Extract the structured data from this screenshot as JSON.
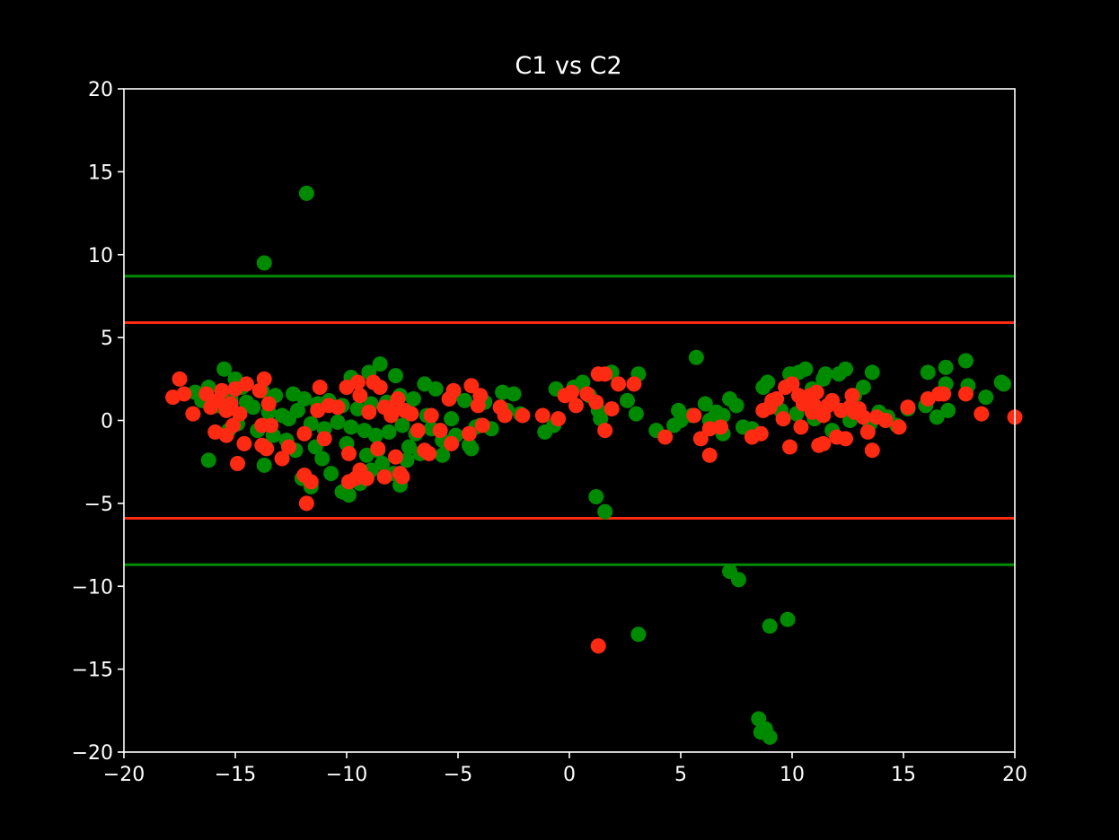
{
  "chart_data": {
    "type": "scatter",
    "title": "C1 vs C2",
    "xlabel": "",
    "ylabel": "",
    "xlim": [
      -20,
      20
    ],
    "ylim": [
      -20,
      20
    ],
    "xticks": [
      -20,
      -15,
      -10,
      -5,
      0,
      5,
      10,
      15,
      20
    ],
    "yticks": [
      -20,
      -15,
      -10,
      -5,
      0,
      5,
      10,
      15,
      20
    ],
    "grid": false,
    "colors": {
      "background": "#000000",
      "axes": "#ffffff",
      "green": "#008a00",
      "red": "#ff2a12"
    },
    "hlines": [
      {
        "y": 8.7,
        "color": "#008a00"
      },
      {
        "y": 5.9,
        "color": "#ff2a12"
      },
      {
        "y": -5.9,
        "color": "#ff2a12"
      },
      {
        "y": -8.7,
        "color": "#008a00"
      }
    ],
    "series": [
      {
        "color": "#008a00",
        "points": [
          [
            -11.8,
            13.7
          ],
          [
            -13.7,
            9.5
          ],
          [
            5.7,
            3.8
          ],
          [
            17.8,
            3.6
          ],
          [
            -15.5,
            3.1
          ],
          [
            -8.5,
            3.4
          ],
          [
            -7.8,
            2.7
          ],
          [
            -9.0,
            2.9
          ],
          [
            -9.8,
            2.6
          ],
          [
            -15.0,
            2.5
          ],
          [
            -16.2,
            2.0
          ],
          [
            -14.7,
            2.0
          ],
          [
            -13.8,
            1.8
          ],
          [
            -16.8,
            1.7
          ],
          [
            -13.2,
            1.5
          ],
          [
            -12.4,
            1.6
          ],
          [
            -11.9,
            1.3
          ],
          [
            -11.3,
            1.0
          ],
          [
            -10.8,
            1.2
          ],
          [
            -10.2,
            0.9
          ],
          [
            -9.5,
            0.7
          ],
          [
            -8.9,
            1.0
          ],
          [
            -8.2,
            1.1
          ],
          [
            -7.6,
            1.5
          ],
          [
            -7.0,
            1.3
          ],
          [
            -6.5,
            2.2
          ],
          [
            -6.0,
            1.9
          ],
          [
            -5.2,
            1.6
          ],
          [
            -4.7,
            1.2
          ],
          [
            -3.8,
            1.1
          ],
          [
            -3.0,
            1.7
          ],
          [
            -2.5,
            1.6
          ],
          [
            -14.2,
            0.8
          ],
          [
            -13.5,
            0.5
          ],
          [
            -12.9,
            0.3
          ],
          [
            -12.2,
            0.6
          ],
          [
            -11.6,
            -0.2
          ],
          [
            -11.0,
            -0.5
          ],
          [
            -10.4,
            -0.1
          ],
          [
            -9.8,
            -0.4
          ],
          [
            -9.2,
            -0.6
          ],
          [
            -8.7,
            -0.9
          ],
          [
            -8.1,
            -0.7
          ],
          [
            -7.5,
            -0.3
          ],
          [
            -6.9,
            -0.8
          ],
          [
            -6.2,
            -0.5
          ],
          [
            -5.7,
            -1.2
          ],
          [
            -5.1,
            -0.9
          ],
          [
            -4.5,
            -1.5
          ],
          [
            -4.0,
            -0.3
          ],
          [
            -13.7,
            -2.7
          ],
          [
            -12.3,
            -1.8
          ],
          [
            -12.0,
            -3.5
          ],
          [
            -11.6,
            -4.0
          ],
          [
            -11.1,
            -2.3
          ],
          [
            -10.7,
            -3.2
          ],
          [
            -10.2,
            -4.3
          ],
          [
            -9.9,
            -4.5
          ],
          [
            -9.4,
            -3.8
          ],
          [
            -8.9,
            -3.0
          ],
          [
            -8.4,
            -2.6
          ],
          [
            -7.9,
            -3.2
          ],
          [
            -7.6,
            -3.9
          ],
          [
            -7.2,
            -1.6
          ],
          [
            -6.7,
            -2.0
          ],
          [
            -5.7,
            -2.1
          ],
          [
            -4.4,
            -1.7
          ],
          [
            -16.2,
            -2.4
          ],
          [
            -15.8,
            0.9
          ],
          [
            -15.2,
            1.3
          ],
          [
            -14.5,
            1.1
          ],
          [
            -14.9,
            -0.2
          ],
          [
            -12.7,
            -1.2
          ],
          [
            -11.4,
            -1.6
          ],
          [
            -10.0,
            -1.4
          ],
          [
            -8.6,
            -1.8
          ],
          [
            -7.3,
            -2.4
          ],
          [
            -9.1,
            -2.1
          ],
          [
            -6.4,
            0.3
          ],
          [
            -5.3,
            0.1
          ],
          [
            -4.2,
            -0.4
          ],
          [
            -3.5,
            -0.5
          ],
          [
            -2.8,
            0.6
          ],
          [
            -2.2,
            0.4
          ],
          [
            -0.6,
            1.9
          ],
          [
            0.2,
            2.0
          ],
          [
            0.6,
            2.3
          ],
          [
            0.9,
            1.5
          ],
          [
            1.3,
            0.6
          ],
          [
            1.4,
            0.1
          ],
          [
            1.9,
            2.9
          ],
          [
            2.6,
            1.2
          ],
          [
            3.0,
            0.4
          ],
          [
            3.1,
            2.8
          ],
          [
            -1.1,
            -0.7
          ],
          [
            -0.7,
            -0.3
          ],
          [
            1.2,
            -4.6
          ],
          [
            1.6,
            -5.5
          ],
          [
            3.1,
            -12.9
          ],
          [
            3.9,
            -0.6
          ],
          [
            4.7,
            -0.3
          ],
          [
            4.9,
            0.6
          ],
          [
            5.5,
            0.3
          ],
          [
            6.1,
            1.0
          ],
          [
            6.6,
            0.5
          ],
          [
            6.9,
            -0.8
          ],
          [
            7.2,
            1.3
          ],
          [
            7.5,
            0.9
          ],
          [
            7.8,
            -0.4
          ],
          [
            8.2,
            -0.5
          ],
          [
            8.7,
            2.0
          ],
          [
            8.9,
            2.3
          ],
          [
            9.2,
            1.2
          ],
          [
            9.5,
            0.6
          ],
          [
            9.9,
            2.8
          ],
          [
            10.3,
            2.9
          ],
          [
            10.6,
            3.1
          ],
          [
            10.9,
            1.9
          ],
          [
            11.4,
            2.5
          ],
          [
            11.5,
            2.8
          ],
          [
            12.1,
            2.8
          ],
          [
            12.4,
            3.1
          ],
          [
            12.8,
            1.5
          ],
          [
            13.2,
            2.0
          ],
          [
            13.6,
            2.9
          ],
          [
            13.9,
            0.5
          ],
          [
            14.3,
            0.2
          ],
          [
            14.7,
            -0.3
          ],
          [
            15.2,
            0.7
          ],
          [
            16.0,
            0.9
          ],
          [
            16.1,
            2.9
          ],
          [
            16.5,
            0.2
          ],
          [
            16.9,
            2.2
          ],
          [
            16.9,
            3.2
          ],
          [
            17.0,
            0.6
          ],
          [
            17.9,
            2.1
          ],
          [
            18.7,
            1.4
          ],
          [
            19.4,
            2.3
          ],
          [
            19.5,
            2.2
          ],
          [
            7.2,
            -9.1
          ],
          [
            7.6,
            -9.6
          ],
          [
            8.5,
            -18.0
          ],
          [
            8.6,
            -18.8
          ],
          [
            8.8,
            -18.6
          ],
          [
            9.0,
            -19.1
          ],
          [
            9.0,
            -12.4
          ],
          [
            9.8,
            -12.0
          ],
          [
            10.2,
            0.4
          ],
          [
            11.0,
            0.1
          ],
          [
            11.8,
            -0.6
          ],
          [
            12.6,
            0.0
          ],
          [
            13.5,
            -0.2
          ],
          [
            6.3,
            0.0
          ],
          [
            6.9,
            0.3
          ],
          [
            5.0,
            0.0
          ],
          [
            -14.0,
            -0.6
          ],
          [
            -13.3,
            -0.9
          ],
          [
            -12.6,
            0.1
          ],
          [
            -15.3,
            -0.6
          ],
          [
            -16.5,
            1.2
          ]
        ]
      },
      {
        "color": "#ff2a12",
        "points": [
          [
            -17.5,
            2.5
          ],
          [
            -17.8,
            1.4
          ],
          [
            -17.3,
            1.6
          ],
          [
            -16.9,
            0.4
          ],
          [
            -16.3,
            1.6
          ],
          [
            -16.1,
            0.8
          ],
          [
            -15.8,
            1.2
          ],
          [
            -15.6,
            1.8
          ],
          [
            -15.4,
            0.6
          ],
          [
            -15.2,
            1.0
          ],
          [
            -15.0,
            1.9
          ],
          [
            -14.8,
            0.4
          ],
          [
            -14.5,
            2.2
          ],
          [
            -13.9,
            1.8
          ],
          [
            -13.7,
            2.5
          ],
          [
            -13.5,
            1.0
          ],
          [
            -15.9,
            -0.7
          ],
          [
            -15.4,
            -0.9
          ],
          [
            -15.1,
            -0.3
          ],
          [
            -14.9,
            -2.6
          ],
          [
            -14.6,
            -1.4
          ],
          [
            -13.8,
            -0.3
          ],
          [
            -13.4,
            -0.3
          ],
          [
            -13.6,
            -1.7
          ],
          [
            -13.8,
            -1.5
          ],
          [
            -12.9,
            -2.3
          ],
          [
            -12.6,
            -1.6
          ],
          [
            -11.9,
            -0.8
          ],
          [
            -11.9,
            -3.3
          ],
          [
            -11.8,
            -5.0
          ],
          [
            -11.6,
            -3.7
          ],
          [
            -11.0,
            -1.1
          ],
          [
            -11.2,
            2.0
          ],
          [
            -11.3,
            0.6
          ],
          [
            -10.8,
            0.9
          ],
          [
            -10.4,
            0.8
          ],
          [
            -10.0,
            2.0
          ],
          [
            -9.9,
            -2.0
          ],
          [
            -9.9,
            -3.7
          ],
          [
            -9.6,
            -3.5
          ],
          [
            -9.4,
            -3.0
          ],
          [
            -9.1,
            -3.5
          ],
          [
            -9.0,
            0.5
          ],
          [
            -9.5,
            2.3
          ],
          [
            -9.4,
            1.5
          ],
          [
            -8.8,
            2.3
          ],
          [
            -8.5,
            2.0
          ],
          [
            -8.3,
            0.8
          ],
          [
            -8.3,
            -3.4
          ],
          [
            -8.6,
            -1.7
          ],
          [
            -8.0,
            0.3
          ],
          [
            -7.9,
            0.8
          ],
          [
            -7.7,
            1.3
          ],
          [
            -7.4,
            0.6
          ],
          [
            -7.8,
            -2.2
          ],
          [
            -7.6,
            -3.2
          ],
          [
            -7.5,
            -3.4
          ],
          [
            -7.1,
            0.4
          ],
          [
            -6.8,
            -0.6
          ],
          [
            -6.5,
            -1.8
          ],
          [
            -6.3,
            -2.0
          ],
          [
            -6.2,
            0.3
          ],
          [
            -5.8,
            -0.6
          ],
          [
            -5.3,
            -1.4
          ],
          [
            -5.2,
            1.8
          ],
          [
            -5.4,
            1.3
          ],
          [
            -4.4,
            2.1
          ],
          [
            -4.5,
            -0.8
          ],
          [
            -4.0,
            1.5
          ],
          [
            -4.1,
            0.9
          ],
          [
            -3.9,
            -0.3
          ],
          [
            -3.1,
            0.8
          ],
          [
            -2.9,
            0.3
          ],
          [
            -2.1,
            0.3
          ],
          [
            -1.2,
            0.3
          ],
          [
            -0.5,
            0.1
          ],
          [
            -0.2,
            1.5
          ],
          [
            0.1,
            1.7
          ],
          [
            0.3,
            0.9
          ],
          [
            0.8,
            1.6
          ],
          [
            1.2,
            1.1
          ],
          [
            1.3,
            2.8
          ],
          [
            1.6,
            2.8
          ],
          [
            1.6,
            -0.6
          ],
          [
            1.9,
            0.7
          ],
          [
            2.2,
            2.2
          ],
          [
            2.9,
            2.2
          ],
          [
            1.3,
            -13.6
          ],
          [
            4.3,
            -1.0
          ],
          [
            5.6,
            0.3
          ],
          [
            5.9,
            -1.1
          ],
          [
            6.3,
            -2.1
          ],
          [
            6.3,
            -0.5
          ],
          [
            6.8,
            -0.4
          ],
          [
            8.2,
            -1.0
          ],
          [
            8.6,
            -0.8
          ],
          [
            8.7,
            0.6
          ],
          [
            9.1,
            1.2
          ],
          [
            9.3,
            1.3
          ],
          [
            9.6,
            0.1
          ],
          [
            9.7,
            2.0
          ],
          [
            9.9,
            -1.6
          ],
          [
            10.0,
            2.2
          ],
          [
            10.3,
            1.5
          ],
          [
            10.4,
            -0.4
          ],
          [
            10.5,
            1.0
          ],
          [
            10.8,
            1.5
          ],
          [
            11.0,
            0.9
          ],
          [
            11.1,
            1.7
          ],
          [
            11.2,
            -1.5
          ],
          [
            11.4,
            -1.4
          ],
          [
            11.4,
            0.3
          ],
          [
            11.8,
            1.2
          ],
          [
            12.0,
            -1.0
          ],
          [
            12.2,
            0.6
          ],
          [
            12.4,
            -1.1
          ],
          [
            12.6,
            0.8
          ],
          [
            12.7,
            1.5
          ],
          [
            12.8,
            0.5
          ],
          [
            13.0,
            0.7
          ],
          [
            13.2,
            0.2
          ],
          [
            13.4,
            -0.7
          ],
          [
            13.6,
            -1.8
          ],
          [
            13.8,
            0.2
          ],
          [
            14.2,
            0.0
          ],
          [
            14.8,
            -0.4
          ],
          [
            15.2,
            0.8
          ],
          [
            16.1,
            1.3
          ],
          [
            16.6,
            1.6
          ],
          [
            16.8,
            1.6
          ],
          [
            17.8,
            1.6
          ],
          [
            18.5,
            0.4
          ],
          [
            20.0,
            0.2
          ],
          [
            10.9,
            0.5
          ],
          [
            11.6,
            0.9
          ],
          [
            9.0,
            0.8
          ]
        ]
      }
    ]
  }
}
